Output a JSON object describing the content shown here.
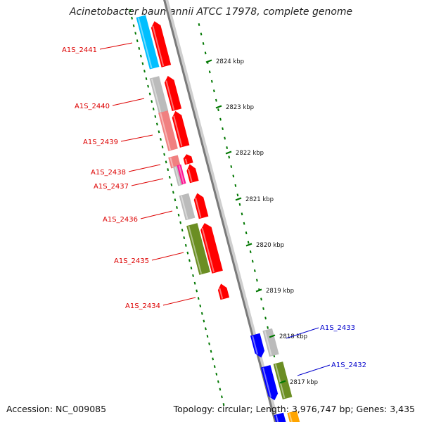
{
  "title": "Acinetobacter baumannii ATCC 17978, complete genome",
  "footer": {
    "accession": "Accession: NC_009085",
    "summary": "Topology: circular; Length: 3,976,747 bp; Genes: 3,435"
  },
  "colors": {
    "red": "#ff0000",
    "light_red": "#f08080",
    "blue": "#0000ff",
    "cyan": "#00bfff",
    "olive": "#6b8e23",
    "gray": "#bbbbbb",
    "magenta": "#ff1493",
    "orange": "#ffa500",
    "tick_green": "#007700",
    "label_red": "#dd0000",
    "label_blue": "#0000cc"
  },
  "ticks": [
    {
      "label": "2824 kbp"
    },
    {
      "label": "2823 kbp"
    },
    {
      "label": "2822 kbp"
    },
    {
      "label": "2821 kbp"
    },
    {
      "label": "2820 kbp"
    },
    {
      "label": "2819 kbp"
    },
    {
      "label": "2818 kbp"
    },
    {
      "label": "2817 kbp"
    }
  ],
  "genes": [
    {
      "name": "A1S_2441",
      "color": "label_red"
    },
    {
      "name": "A1S_2440",
      "color": "label_red"
    },
    {
      "name": "A1S_2439",
      "color": "label_red"
    },
    {
      "name": "A1S_2438",
      "color": "label_red"
    },
    {
      "name": "A1S_2437",
      "color": "label_red"
    },
    {
      "name": "A1S_2436",
      "color": "label_red"
    },
    {
      "name": "A1S_2435",
      "color": "label_red"
    },
    {
      "name": "A1S_2434",
      "color": "label_red"
    },
    {
      "name": "A1S_2433",
      "color": "label_blue"
    },
    {
      "name": "A1S_2432",
      "color": "label_blue"
    }
  ]
}
